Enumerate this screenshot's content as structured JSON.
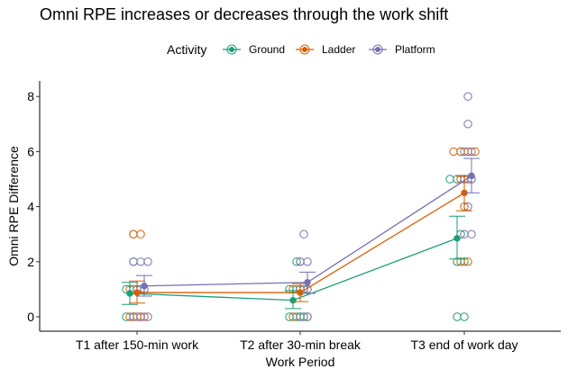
{
  "chart_data": {
    "type": "line",
    "title": "Omni RPE increases or decreases through the work shift",
    "xlabel": "Work Period",
    "ylabel": "Omni RPE Difference",
    "legend_title": "Activity",
    "legend_position": "top",
    "grid": false,
    "categories": [
      "T1 after 150-min work",
      "T2 after 30-min break",
      "T3 end of work day"
    ],
    "ylim": [
      -0.5,
      8.5
    ],
    "yticks": [
      0,
      2,
      4,
      6,
      8
    ],
    "series": [
      {
        "name": "Ground",
        "color": "#1b9e77",
        "means": [
          0.85,
          0.6,
          2.85
        ],
        "ci_low": [
          0.45,
          0.3,
          2.1
        ],
        "ci_high": [
          1.25,
          0.95,
          3.65
        ],
        "points": [
          [
            0,
            0,
            0,
            1,
            1,
            1,
            2,
            3
          ],
          [
            0,
            0,
            0,
            1,
            1,
            1,
            2
          ],
          [
            0,
            0,
            2,
            2,
            3,
            5,
            5,
            5,
            5,
            6
          ]
        ]
      },
      {
        "name": "Ladder",
        "color": "#d95f02",
        "means": [
          0.88,
          0.88,
          4.5
        ],
        "ci_low": [
          0.5,
          0.55,
          3.85
        ],
        "ci_high": [
          1.3,
          1.2,
          5.1
        ],
        "points": [
          [
            0,
            0,
            0,
            1,
            1,
            1,
            3,
            3
          ],
          [
            0,
            0,
            0,
            1,
            1,
            1,
            2
          ],
          [
            2,
            2,
            4,
            5,
            5,
            6,
            6,
            6,
            6
          ]
        ]
      },
      {
        "name": "Platform",
        "color": "#7570b3",
        "means": [
          1.12,
          1.25,
          5.12
        ],
        "ci_low": [
          0.75,
          0.85,
          4.5
        ],
        "ci_high": [
          1.5,
          1.62,
          5.75
        ],
        "points": [
          [
            0,
            0,
            0,
            1,
            1,
            2,
            2,
            2
          ],
          [
            0,
            0,
            1,
            1,
            2,
            2,
            3
          ],
          [
            3,
            3,
            4,
            5,
            5,
            6,
            6,
            7,
            8
          ]
        ]
      }
    ]
  }
}
